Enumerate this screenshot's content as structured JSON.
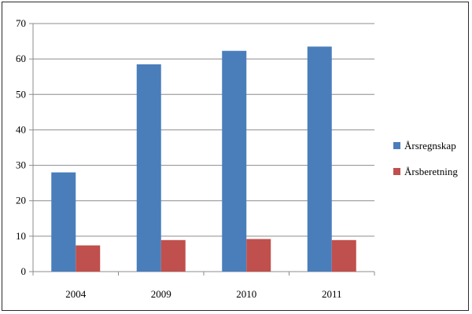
{
  "chart_data": {
    "type": "bar",
    "categories": [
      "2004",
      "2009",
      "2010",
      "2011"
    ],
    "series": [
      {
        "name": "Årsregnskap",
        "values": [
          28,
          58.5,
          62.3,
          63.5
        ],
        "color": "#4a7ebb"
      },
      {
        "name": "Årsberetning",
        "values": [
          7.4,
          8.9,
          9.2,
          8.9
        ],
        "color": "#c0504d"
      }
    ],
    "ylim": [
      0,
      70
    ],
    "yticks": [
      0,
      10,
      20,
      30,
      40,
      50,
      60,
      70
    ],
    "grid": true,
    "legend_position": "right",
    "title": "",
    "xlabel": "",
    "ylabel": ""
  }
}
